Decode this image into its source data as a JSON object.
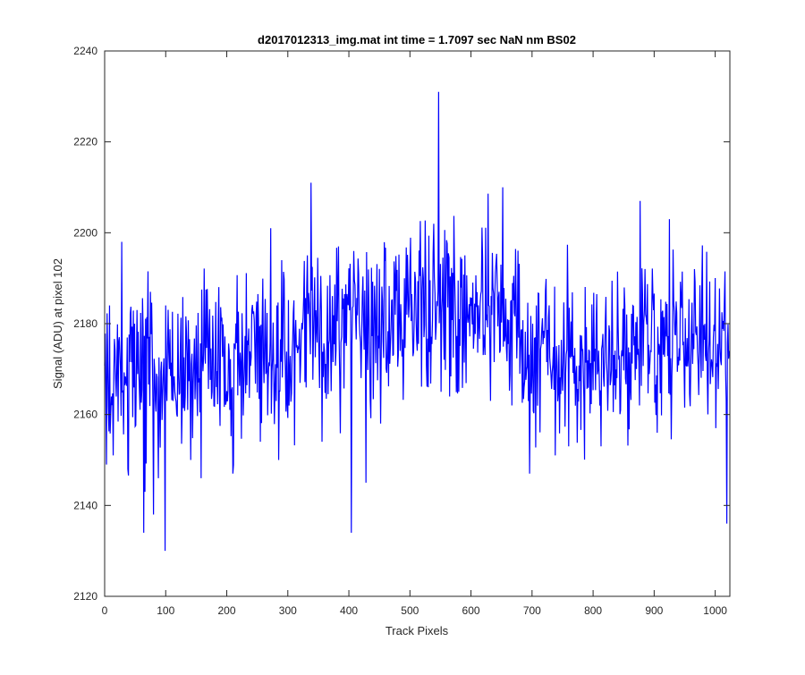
{
  "chart_data": {
    "type": "line",
    "title": "d2017012313_img.mat int time = 1.7097 sec  NaN nm BS02",
    "xlabel": "Track Pixels",
    "ylabel": "Signal (ADU) at pixel 102",
    "xlim": [
      0,
      1024
    ],
    "ylim": [
      2120,
      2240
    ],
    "xticks": [
      0,
      100,
      200,
      300,
      400,
      500,
      600,
      700,
      800,
      900,
      1000
    ],
    "yticks": [
      2120,
      2140,
      2160,
      2180,
      2200,
      2220,
      2240
    ],
    "grid": false,
    "line_color": "#0000ff",
    "series": [
      {
        "n_points": 1024,
        "trend": [
          [
            0,
            2171
          ],
          [
            100,
            2170
          ],
          [
            200,
            2172
          ],
          [
            300,
            2176
          ],
          [
            400,
            2177
          ],
          [
            500,
            2183
          ],
          [
            560,
            2185
          ],
          [
            650,
            2184
          ],
          [
            700,
            2172
          ],
          [
            800,
            2173
          ],
          [
            900,
            2176
          ],
          [
            1000,
            2176
          ],
          [
            1023,
            2173
          ]
        ],
        "noise_amplitude": 9,
        "notable_points": [
          [
            3,
            2149
          ],
          [
            8,
            2184
          ],
          [
            14,
            2151
          ],
          [
            28,
            2198
          ],
          [
            38,
            2148
          ],
          [
            64,
            2134
          ],
          [
            66,
            2143
          ],
          [
            75,
            2187
          ],
          [
            80,
            2138
          ],
          [
            88,
            2146
          ],
          [
            99,
            2130
          ],
          [
            141,
            2150
          ],
          [
            158,
            2146
          ],
          [
            210,
            2147
          ],
          [
            255,
            2154
          ],
          [
            272,
            2201
          ],
          [
            285,
            2150
          ],
          [
            338,
            2211
          ],
          [
            356,
            2154
          ],
          [
            383,
            2197
          ],
          [
            404,
            2134
          ],
          [
            428,
            2145
          ],
          [
            500,
            2192
          ],
          [
            530,
            2166
          ],
          [
            547,
            2231
          ],
          [
            555,
            2180
          ],
          [
            580,
            2165
          ],
          [
            632,
            2163
          ],
          [
            652,
            2210
          ],
          [
            667,
            2162
          ],
          [
            696,
            2147
          ],
          [
            707,
            2184
          ],
          [
            738,
            2151
          ],
          [
            760,
            2153
          ],
          [
            813,
            2153
          ],
          [
            877,
            2207
          ],
          [
            905,
            2156
          ],
          [
            925,
            2203
          ],
          [
            966,
            2192
          ],
          [
            1001,
            2157
          ],
          [
            1019,
            2136
          ],
          [
            1023,
            2174
          ]
        ]
      }
    ]
  }
}
